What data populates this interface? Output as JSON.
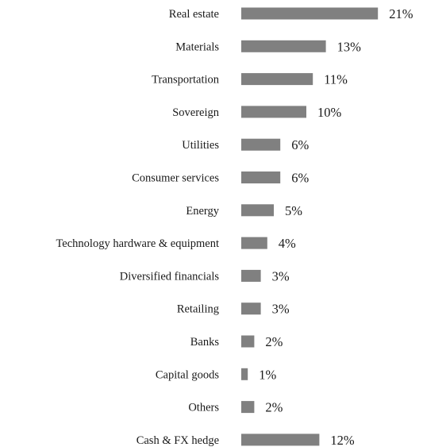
{
  "chart_data": {
    "type": "bar",
    "orientation": "horizontal",
    "title": "",
    "categories": [
      "Real estate",
      "Materials",
      "Transportation",
      "Sovereign",
      "Utilities",
      "Consumer services",
      "Energy",
      "Technology hardware & equipment",
      "Diversified financials",
      "Retailing",
      "Banks",
      "Capital goods",
      "Others",
      "Cash & FX hedge"
    ],
    "values": [
      21,
      13,
      11,
      10,
      6,
      6,
      5,
      4,
      3,
      3,
      2,
      1,
      2,
      12
    ],
    "value_labels": [
      "21%",
      "13%",
      "11%",
      "10%",
      "6%",
      "6%",
      "5%",
      "4%",
      "3%",
      "3%",
      "2%",
      "1%",
      "2%",
      "12%"
    ],
    "unit": "%",
    "bar_color": "#808080",
    "grid": false,
    "legend": "none"
  }
}
